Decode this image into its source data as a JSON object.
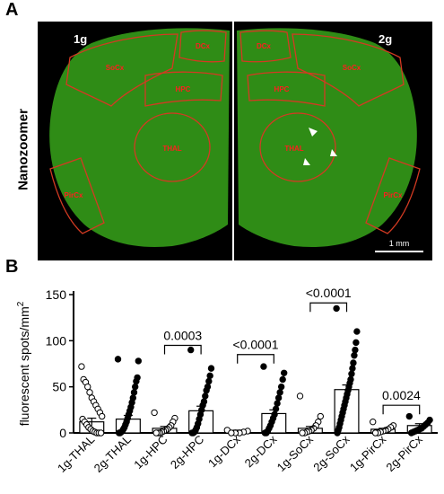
{
  "figure": {
    "panel_a_label": "A",
    "panel_b_label": "B",
    "side_label": "Nanozoomer",
    "left_hemisphere_label": "1g",
    "right_hemisphere_label": "2g",
    "scale_bar_label": "1 mm",
    "tissue_color": "#2f8c16",
    "outline_color": "#d33a22",
    "region_label_color": "#ff1e1e",
    "region_labels_left": [
      "DCx",
      "SoCx",
      "HPC",
      "THAL",
      "PirCx"
    ],
    "region_labels_right": [
      "DCx",
      "SoCx",
      "HPC",
      "THAL",
      "PirCx"
    ]
  },
  "chart_data": {
    "type": "bar",
    "ylabel": "fluorescent spots/mm",
    "ylabel_superscript": "2",
    "ylim": [
      0,
      150
    ],
    "yticks": [
      0,
      50,
      100,
      150
    ],
    "categories": [
      "1g-THAL",
      "2g-THAL",
      "1g-HPC",
      "2g-HPC",
      "1g-DCx",
      "2g-DCx",
      "1g-SoCx",
      "2g-SoCx",
      "1g-PirCx",
      "2g-PirCx"
    ],
    "means": [
      12,
      15,
      5,
      24,
      2,
      21,
      5,
      47,
      4,
      8
    ],
    "sem": [
      4,
      4,
      2,
      5,
      1,
      4,
      2,
      5,
      1,
      2
    ],
    "marker_fill": [
      "open",
      "filled",
      "open",
      "filled",
      "open",
      "filled",
      "open",
      "filled",
      "open",
      "filled"
    ],
    "points": [
      [
        72,
        58,
        55,
        50,
        44,
        38,
        34,
        30,
        26,
        22,
        18,
        15,
        12,
        9,
        6,
        4,
        2,
        1,
        0,
        0,
        0
      ],
      [
        80,
        78,
        60,
        56,
        50,
        44,
        38,
        33,
        28,
        24,
        20,
        16,
        12,
        9,
        6,
        4,
        2,
        1,
        0,
        0
      ],
      [
        22,
        16,
        12,
        8,
        6,
        4,
        3,
        2,
        1,
        0,
        0,
        0
      ],
      [
        90,
        70,
        62,
        56,
        50,
        46,
        40,
        34,
        30,
        25,
        20,
        15,
        10,
        6,
        3,
        1,
        0,
        0
      ],
      [
        3,
        2,
        1,
        0,
        0,
        0
      ],
      [
        72,
        65,
        58,
        50,
        44,
        38,
        32,
        26,
        20,
        16,
        12,
        8,
        5,
        2,
        0,
        0
      ],
      [
        40,
        18,
        12,
        8,
        5,
        3,
        2,
        1,
        0,
        0
      ],
      [
        135,
        110,
        98,
        90,
        84,
        76,
        70,
        64,
        58,
        54,
        50,
        46,
        42,
        38,
        34,
        30,
        26,
        22,
        18,
        14,
        10,
        6,
        3,
        0
      ],
      [
        12,
        8,
        6,
        4,
        3,
        2,
        1,
        0,
        0
      ],
      [
        18,
        14,
        11,
        9,
        7,
        5,
        4,
        3,
        2,
        1,
        0
      ]
    ],
    "comparisons": [
      {
        "from": 2,
        "to": 3,
        "label": "0.0003",
        "bracket_y": 95
      },
      {
        "from": 4,
        "to": 5,
        "label": "<0.0001",
        "bracket_y": 85
      },
      {
        "from": 6,
        "to": 7,
        "label": "<0.0001",
        "bracket_y": 141
      },
      {
        "from": 8,
        "to": 9,
        "label": "0.0024",
        "bracket_y": 30
      }
    ]
  }
}
